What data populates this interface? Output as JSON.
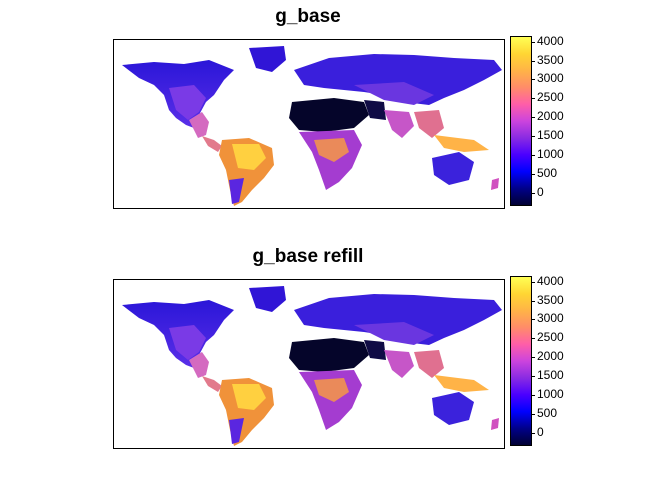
{
  "panels": [
    {
      "title": "g_base"
    },
    {
      "title": "g_base refill"
    }
  ],
  "legend": {
    "ticks": [
      "4000",
      "3500",
      "3000",
      "2500",
      "2000",
      "1500",
      "1000",
      "500",
      "0"
    ],
    "min": -300,
    "max": 4150,
    "tick_values": [
      4000,
      3500,
      3000,
      2500,
      2000,
      1500,
      1000,
      500,
      0
    ],
    "colors": [
      "#000033",
      "#00008B",
      "#0000FF",
      "#4B00FF",
      "#8A2BE2",
      "#CC44DD",
      "#FF5EA8",
      "#FF8C69",
      "#FFB347",
      "#FFD633",
      "#FFFF55"
    ]
  }
}
